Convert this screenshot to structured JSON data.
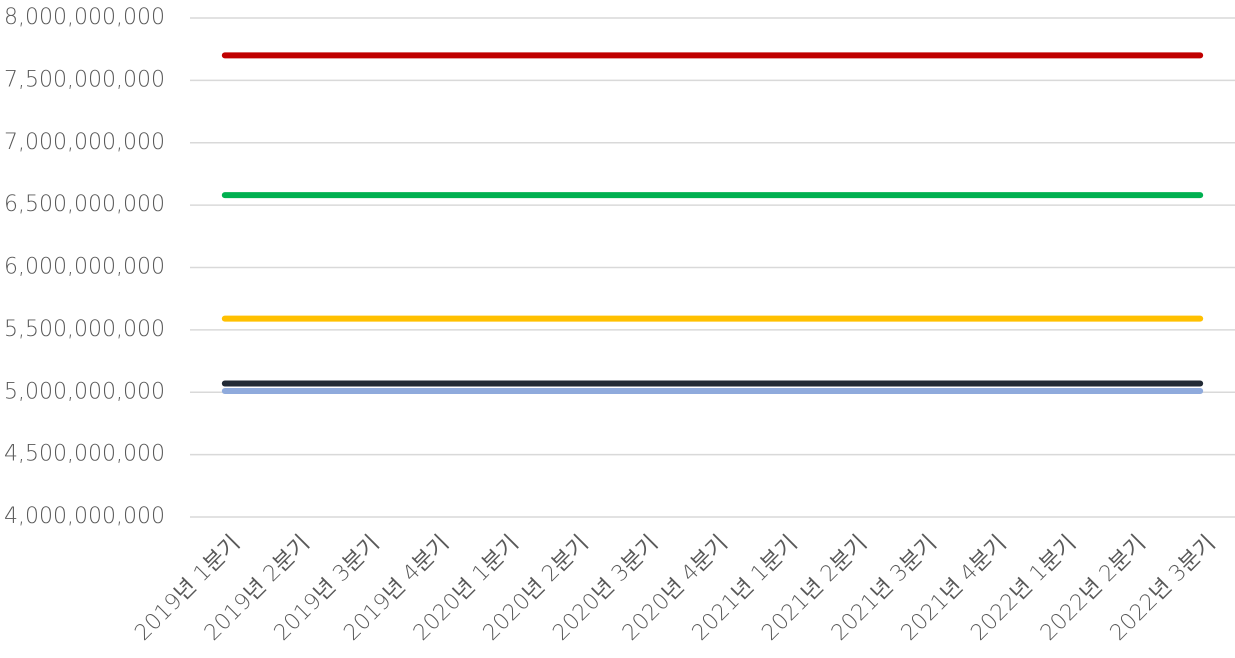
{
  "chart_data": {
    "type": "line",
    "categories": [
      "2019년 1분기",
      "2019년 2분기",
      "2019년 3분기",
      "2019년 4분기",
      "2020년 1분기",
      "2020년 2분기",
      "2020년 3분기",
      "2020년 4분기",
      "2021년 1분기",
      "2021년 2분기",
      "2021년 3분기",
      "2021년 4분기",
      "2022년 1분기",
      "2022년 2분기",
      "2022년 3분기"
    ],
    "series": [
      {
        "color": "#c00000",
        "values": [
          7700000000,
          7700000000,
          7700000000,
          7700000000,
          7700000000,
          7700000000,
          7700000000,
          7700000000,
          7700000000,
          7700000000,
          7700000000,
          7700000000,
          7700000000,
          7700000000,
          7700000000
        ]
      },
      {
        "color": "#00b050",
        "values": [
          6580000000,
          6580000000,
          6580000000,
          6580000000,
          6580000000,
          6580000000,
          6580000000,
          6580000000,
          6580000000,
          6580000000,
          6580000000,
          6580000000,
          6580000000,
          6580000000,
          6580000000
        ]
      },
      {
        "color": "#ffc000",
        "values": [
          5590000000,
          5590000000,
          5590000000,
          5590000000,
          5590000000,
          5590000000,
          5590000000,
          5590000000,
          5590000000,
          5590000000,
          5590000000,
          5590000000,
          5590000000,
          5590000000,
          5590000000
        ]
      },
      {
        "color": "#8faadc",
        "values": [
          5010000000,
          5010000000,
          5010000000,
          5010000000,
          5010000000,
          5010000000,
          5010000000,
          5010000000,
          5010000000,
          5010000000,
          5010000000,
          5010000000,
          5010000000,
          5010000000,
          5010000000
        ]
      },
      {
        "color": "#222a35",
        "values": [
          5070000000,
          5070000000,
          5070000000,
          5070000000,
          5070000000,
          5070000000,
          5070000000,
          5070000000,
          5070000000,
          5070000000,
          5070000000,
          5070000000,
          5070000000,
          5070000000,
          5070000000
        ]
      }
    ],
    "ylim": [
      4000000000,
      8000000000
    ],
    "yticks": [
      {
        "value": 4000000000,
        "label": "4,000,000,000"
      },
      {
        "value": 4500000000,
        "label": "4,500,000,000"
      },
      {
        "value": 5000000000,
        "label": "5,000,000,000"
      },
      {
        "value": 5500000000,
        "label": "5,500,000,000"
      },
      {
        "value": 6000000000,
        "label": "6,000,000,000"
      },
      {
        "value": 6500000000,
        "label": "6,500,000,000"
      },
      {
        "value": 7000000000,
        "label": "7,000,000,000"
      },
      {
        "value": 7500000000,
        "label": "7,500,000,000"
      },
      {
        "value": 8000000000,
        "label": "8,000,000,000"
      }
    ],
    "grid": true
  }
}
